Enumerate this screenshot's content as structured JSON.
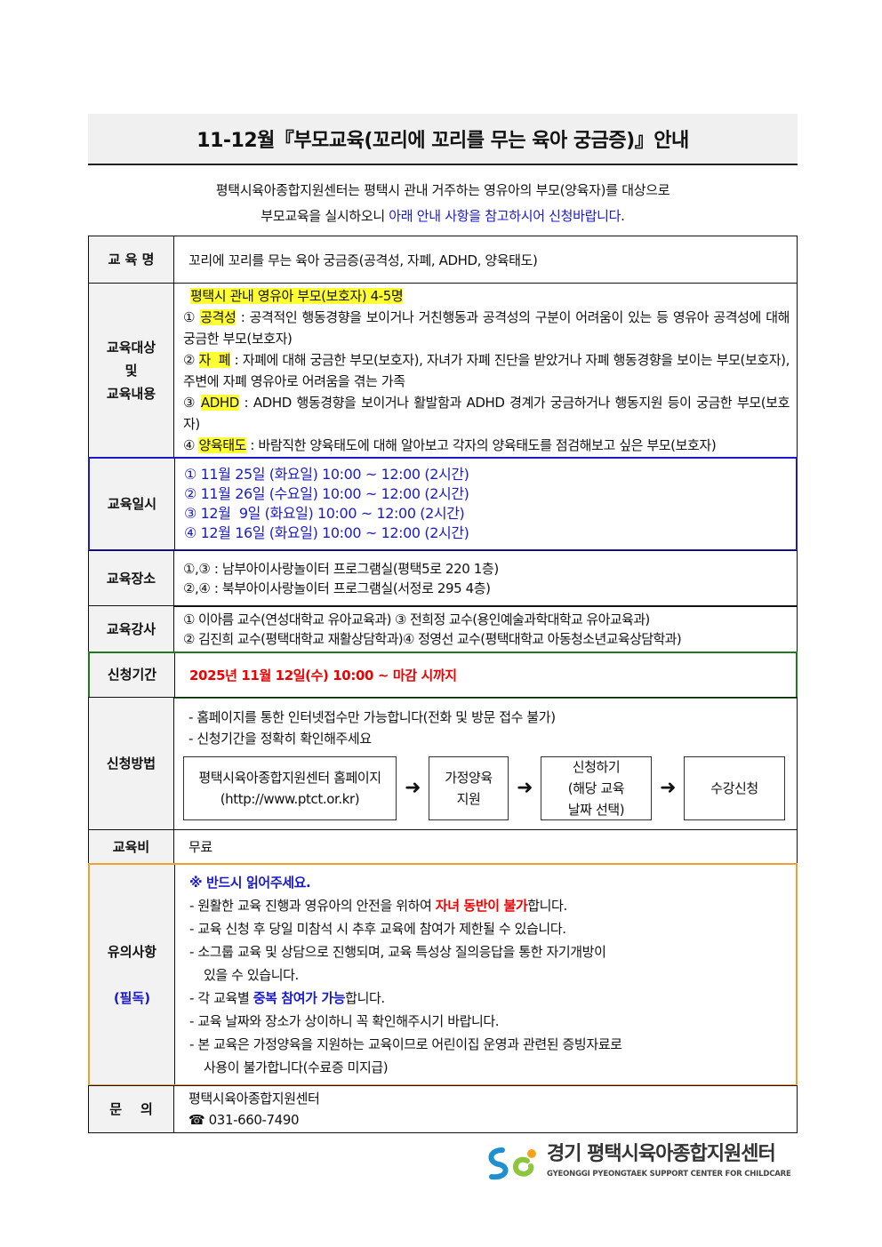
{
  "title": "11-12월『부모교육(꼬리에 꼬리를 무는 육아 궁금증)』안내",
  "intro": {
    "line1": "평택시육아종합지원센터는 평택시 관내 거주하는 영유아의 부모(양육자)를 대상으로",
    "line2_plain": "부모교육을 실시하오니 ",
    "line2_blue": "아래 안내 사항을 참고하시어 신청바랍니다",
    "line2_end": "."
  },
  "rows": {
    "name": {
      "label": "교 육 명",
      "value": "꼬리에 꼬리를 무는 육아 궁금증(공격성, 자폐, ADHD, 양육태도)"
    },
    "target": {
      "label1": "교육대상",
      "label2": "및",
      "label3": "교육내용",
      "headline": "평택시 관내 영유아 부모(보호자) 4-5명",
      "items": [
        {
          "num": "①",
          "tag": "공격성",
          "text": " : 공격적인 행동경향을 보이거나 거친행동과 공격성의 구분이 어려움이 있는 등 영유아 공격성에 대해 궁금한 부모(보호자)"
        },
        {
          "num": "②",
          "tag": "자  폐",
          "text": " : 자폐에 대해 궁금한 부모(보호자), 자녀가 자폐 진단을 받았거나 자폐 행동경향을 보이는 부모(보호자), 주변에 자폐 영유아로 어려움을 겪는 가족"
        },
        {
          "num": "③",
          "tag": "ADHD",
          "text": " : ADHD 행동경향을 보이거나 활발함과 ADHD 경계가 궁금하거나 행동지원 등이 궁금한 부모(보호자)"
        },
        {
          "num": "④",
          "tag": "양육태도",
          "text": " : 바람직한 양육태도에 대해 알아보고 각자의 양육태도를 점검해보고 싶은 부모(보호자)"
        }
      ]
    },
    "dates": {
      "label": "교육일시",
      "items": [
        "① 11월 25일 (화요일) 10:00 ~ 12:00 (2시간)",
        "② 11월 26일 (수요일) 10:00 ~ 12:00 (2시간)",
        "③ 12월  9일 (화요일) 10:00 ~ 12:00 (2시간)",
        "④ 12월 16일 (화요일) 10:00 ~ 12:00 (2시간)"
      ]
    },
    "place": {
      "label": "교육장소",
      "items": [
        "①,③ : 남부아이사랑놀이터 프로그램실(평택5로 220 1층)",
        "②,④ : 북부아이사랑놀이터 프로그램실(서정로 295 4층)"
      ]
    },
    "lecturer": {
      "label": "교육강사",
      "items": [
        "① 이아름 교수(연성대학교 유아교육과)  ③ 전희정 교수(용인예술과학대학교 유아교육과)",
        "② 김진희 교수(평택대학교 재활상담학과)④ 정영선 교수(평택대학교 아동청소년교육상담학과)"
      ]
    },
    "period": {
      "label": "신청기간",
      "value": "2025년 11월 12일(수) 10:00 ~ 마감 시까지"
    },
    "method": {
      "label": "신청방법",
      "notes": [
        "- 홈페이지를 통한 인터넷접수만 가능합니다(전화 및 방문 접수 불가)",
        "- 신청기간을 정확히 확인해주세요"
      ],
      "steps": [
        [
          "평택시육아종합지원센터 홈페이지",
          "(http://www.ptct.or.kr)"
        ],
        [
          "가정양육",
          "지원"
        ],
        [
          "신청하기",
          "(해당 교육",
          "날짜 선택)"
        ],
        [
          "수강신청"
        ]
      ],
      "arrow": "➜"
    },
    "fee": {
      "label": "교육비",
      "value": "무료"
    },
    "notes": {
      "label": "유의사항",
      "label2": "(필독)",
      "heading": "※ 반드시 읽어주세요.",
      "n1a": "- 원활한 교육 진행과 영유아의 안전을 위하여 ",
      "n1b": "자녀 동반이 불가",
      "n1c": "합니다.",
      "n2": "- 교육 신청 후 당일 미참석 시 추후 교육에 참여가 제한될 수 있습니다.",
      "n3": "- 소그룹 교육 및 상담으로 진행되며, 교육 특성상 질의응답을 통한 자기개방이",
      "n3b": "있을 수 있습니다.",
      "n4a": "- 각 교육별 ",
      "n4b": "중복 참여가 가능",
      "n4c": "합니다.",
      "n5": "- 교육 날짜와 장소가 상이하니 꼭 확인해주시기 바랍니다.",
      "n6": "- 본 교육은 가정양육을 지원하는 교육이므로 어린이집 운영과 관련된 증빙자료로",
      "n6b": "사용이 불가합니다(수료증 미지급)"
    },
    "contact": {
      "label": "문    의",
      "org": "평택시육아종합지원센터",
      "phone": "☎ 031-660-7490"
    }
  },
  "footer": {
    "logo_kr": "경기 평택시육아종합지원센터",
    "logo_en": "GYEONGGI PYEONGTAEK SUPPORT CENTER FOR CHILDCARE"
  },
  "colors": {
    "blue": "#1a1acc",
    "red": "#ee0000",
    "highlight": "#ffff33",
    "green": "#1e7a1e",
    "orange": "#f0a030"
  }
}
